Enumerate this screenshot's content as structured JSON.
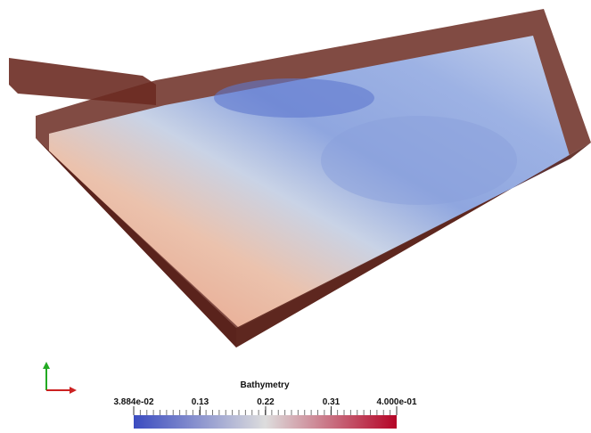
{
  "colorbar": {
    "title": "Bathymetry",
    "range": [
      0.03884,
      0.4
    ],
    "ticks": [
      {
        "value": 0.03884,
        "label": "3.884e-02"
      },
      0.13,
      0.22,
      0.31,
      {
        "value": 0.4,
        "label": "4.000e-01"
      }
    ]
  }
}
